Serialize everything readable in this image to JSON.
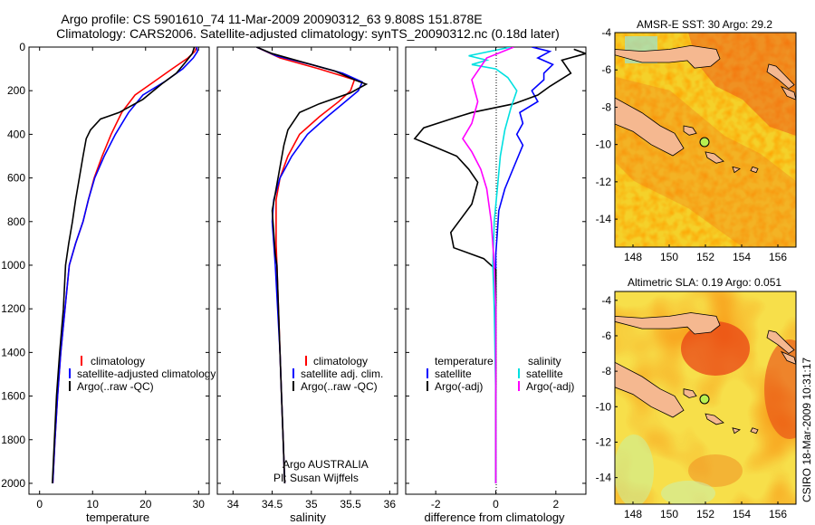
{
  "header": {
    "line1": "Argo profile: CS 5901610_74 11-Mar-2009 20090312_63 9.808S 151.878E",
    "line2": "Climatology: CARS2006. Satellite-adjusted climatology: synTS_20090312.nc (0.18d later)"
  },
  "side_label": "CSIRO 18-Mar-2009 10:31:17",
  "colors": {
    "climatology": "#ff0000",
    "satellite": "#0000ff",
    "argo": "#000000",
    "sat_salinity": "#00e0e0",
    "argo_salinity": "#ff00ff",
    "land": "#f5b890",
    "float_marker": "#b8f050"
  },
  "chart_data": [
    {
      "type": "line",
      "name": "temperature-profile",
      "xlabel": "temperature",
      "ylabel": "",
      "xlim": [
        -2,
        32
      ],
      "ylim": [
        2050,
        0
      ],
      "xticks": [
        0,
        10,
        20,
        30
      ],
      "yticks": [
        0,
        200,
        400,
        600,
        800,
        1000,
        1200,
        1400,
        1600,
        1800,
        2000
      ],
      "legend": {
        "placement": "lower-right",
        "entries": [
          "climatology",
          "satellite-adjusted climatology",
          "Argo(..raw -QC)"
        ]
      },
      "series": [
        {
          "name": "climatology",
          "color": "#ff0000",
          "points": [
            [
              29.6,
              0
            ],
            [
              29.3,
              20
            ],
            [
              28,
              50
            ],
            [
              25,
              100
            ],
            [
              21.5,
              160
            ],
            [
              18,
              220
            ],
            [
              15.5,
              300
            ],
            [
              13.5,
              400
            ],
            [
              11.8,
              500
            ],
            [
              10.3,
              600
            ],
            [
              9.2,
              700
            ],
            [
              8.2,
              800
            ],
            [
              6.8,
              900
            ],
            [
              5.6,
              1000
            ],
            [
              4.8,
              1200
            ],
            [
              4,
              1400
            ],
            [
              3.4,
              1600
            ],
            [
              2.9,
              1800
            ],
            [
              2.5,
              2000
            ]
          ]
        },
        {
          "name": "satellite-adjusted climatology",
          "color": "#0000ff",
          "points": [
            [
              29.6,
              0
            ],
            [
              29.8,
              20
            ],
            [
              29,
              50
            ],
            [
              27,
              100
            ],
            [
              23.5,
              160
            ],
            [
              19.5,
              220
            ],
            [
              16.8,
              300
            ],
            [
              14.3,
              400
            ],
            [
              12.2,
              500
            ],
            [
              10.4,
              600
            ],
            [
              9.2,
              700
            ],
            [
              8.2,
              800
            ],
            [
              6.8,
              900
            ],
            [
              5.6,
              1000
            ],
            [
              4.8,
              1200
            ],
            [
              4,
              1400
            ],
            [
              3.4,
              1600
            ],
            [
              2.9,
              1800
            ],
            [
              2.5,
              2000
            ]
          ]
        },
        {
          "name": "Argo(..raw -QC)",
          "color": "#000000",
          "points": [
            [
              29.2,
              0
            ],
            [
              28.8,
              30
            ],
            [
              27.5,
              70
            ],
            [
              25.8,
              120
            ],
            [
              23,
              170
            ],
            [
              19.5,
              240
            ],
            [
              15,
              300
            ],
            [
              11.5,
              330
            ],
            [
              9.6,
              380
            ],
            [
              8.8,
              420
            ],
            [
              8.2,
              500
            ],
            [
              7.5,
              600
            ],
            [
              6.8,
              700
            ],
            [
              6.2,
              800
            ],
            [
              5.5,
              900
            ],
            [
              4.9,
              1000
            ],
            [
              4.5,
              1200
            ],
            [
              3.8,
              1400
            ],
            [
              3.2,
              1600
            ],
            [
              2.8,
              1800
            ],
            [
              2.4,
              2000
            ]
          ]
        }
      ]
    },
    {
      "type": "line",
      "name": "salinity-profile",
      "xlabel": "salinity",
      "ylabel": "",
      "xlim": [
        33.8,
        36.1
      ],
      "ylim": [
        2050,
        0
      ],
      "xticks": [
        34,
        34.5,
        35,
        35.5,
        36
      ],
      "legend": {
        "placement": "lower-right",
        "entries": [
          "climatology",
          "satellite adj. clim.",
          "Argo(..raw -QC)"
        ]
      },
      "annotations": [
        "Argo AUSTRALIA",
        "PI: Susan Wijffels"
      ],
      "series": [
        {
          "name": "climatology",
          "color": "#ff0000",
          "points": [
            [
              34.3,
              0
            ],
            [
              34.6,
              50
            ],
            [
              35.1,
              100
            ],
            [
              35.55,
              150
            ],
            [
              35.5,
              200
            ],
            [
              35.35,
              250
            ],
            [
              35.1,
              320
            ],
            [
              34.85,
              400
            ],
            [
              34.7,
              500
            ],
            [
              34.6,
              600
            ],
            [
              34.55,
              700
            ],
            [
              34.55,
              800
            ],
            [
              34.55,
              900
            ],
            [
              34.56,
              1000
            ],
            [
              34.58,
              1200
            ],
            [
              34.6,
              1400
            ],
            [
              34.62,
              1600
            ],
            [
              34.64,
              1800
            ],
            [
              34.66,
              2000
            ]
          ]
        },
        {
          "name": "satellite adj. clim.",
          "color": "#0000ff",
          "points": [
            [
              34.3,
              0
            ],
            [
              34.55,
              40
            ],
            [
              35,
              80
            ],
            [
              35.4,
              120
            ],
            [
              35.65,
              160
            ],
            [
              35.6,
              200
            ],
            [
              35.4,
              260
            ],
            [
              35.2,
              320
            ],
            [
              34.95,
              400
            ],
            [
              34.75,
              500
            ],
            [
              34.6,
              600
            ],
            [
              34.52,
              700
            ],
            [
              34.5,
              800
            ],
            [
              34.52,
              900
            ],
            [
              34.54,
              1000
            ],
            [
              34.57,
              1200
            ],
            [
              34.6,
              1400
            ],
            [
              34.62,
              1600
            ],
            [
              34.64,
              1800
            ],
            [
              34.66,
              2000
            ]
          ]
        },
        {
          "name": "Argo(..raw -QC)",
          "color": "#000000",
          "points": [
            [
              34.3,
              0
            ],
            [
              34.5,
              30
            ],
            [
              34.9,
              70
            ],
            [
              35.3,
              110
            ],
            [
              35.55,
              150
            ],
            [
              35.7,
              170
            ],
            [
              35.5,
              210
            ],
            [
              35.1,
              260
            ],
            [
              34.85,
              300
            ],
            [
              34.7,
              380
            ],
            [
              34.65,
              450
            ],
            [
              34.6,
              550
            ],
            [
              34.55,
              650
            ],
            [
              34.5,
              750
            ],
            [
              34.52,
              850
            ],
            [
              34.54,
              950
            ],
            [
              34.56,
              1000
            ],
            [
              34.58,
              1200
            ],
            [
              34.6,
              1400
            ],
            [
              34.62,
              1600
            ],
            [
              34.64,
              1800
            ],
            [
              34.66,
              2000
            ]
          ]
        }
      ]
    },
    {
      "type": "line",
      "name": "difference-profile",
      "xlabel": "difference from climatology",
      "ylabel": "",
      "xlim": [
        -3,
        3
      ],
      "ylim": [
        2050,
        0
      ],
      "xticks": [
        -2,
        0,
        2
      ],
      "zero_line": "dotted",
      "legend": {
        "placement": "lower-center",
        "entries": [
          "temperature",
          "satellite",
          "Argo(-adj)",
          "salinity",
          "satellite",
          "Argo(-adj)"
        ]
      },
      "series": [
        {
          "name": "temperature satellite",
          "color": "#0000ff",
          "points": [
            [
              1.2,
              0
            ],
            [
              1.8,
              20
            ],
            [
              1.4,
              50
            ],
            [
              1.9,
              80
            ],
            [
              1.6,
              120
            ],
            [
              1.6,
              150
            ],
            [
              1.2,
              200
            ],
            [
              1.4,
              250
            ],
            [
              0.8,
              300
            ],
            [
              0.9,
              350
            ],
            [
              0.7,
              400
            ],
            [
              0.9,
              450
            ],
            [
              0.6,
              550
            ],
            [
              0.3,
              650
            ],
            [
              0.1,
              750
            ],
            [
              0.05,
              850
            ],
            [
              0,
              950
            ],
            [
              0,
              1200
            ],
            [
              0,
              1600
            ],
            [
              0,
              2000
            ]
          ]
        },
        {
          "name": "temperature Argo(-adj)",
          "color": "#000000",
          "points": [
            [
              2.6,
              10
            ],
            [
              3,
              30
            ],
            [
              2.2,
              60
            ],
            [
              2.5,
              120
            ],
            [
              1.8,
              180
            ],
            [
              1.4,
              220
            ],
            [
              0.6,
              260
            ],
            [
              -0.8,
              300
            ],
            [
              -1.5,
              330
            ],
            [
              -2.4,
              370
            ],
            [
              -2.7,
              420
            ],
            [
              -2,
              460
            ],
            [
              -1.3,
              500
            ],
            [
              -0.9,
              560
            ],
            [
              -0.6,
              620
            ],
            [
              -0.8,
              720
            ],
            [
              -1.5,
              850
            ],
            [
              -1.4,
              920
            ],
            [
              -0.4,
              970
            ],
            [
              0,
              1020
            ],
            [
              0,
              1200
            ],
            [
              0,
              1600
            ],
            [
              0,
              2000
            ]
          ]
        },
        {
          "name": "salinity satellite",
          "color": "#00e0e0",
          "points": [
            [
              0.5,
              0
            ],
            [
              -0.9,
              40
            ],
            [
              -0.3,
              60
            ],
            [
              -0.8,
              80
            ],
            [
              0,
              100
            ],
            [
              0.4,
              140
            ],
            [
              0.7,
              200
            ],
            [
              0.5,
              280
            ],
            [
              0.3,
              380
            ],
            [
              0.15,
              500
            ],
            [
              0.05,
              650
            ],
            [
              -0.05,
              800
            ],
            [
              -0.1,
              1000
            ],
            [
              -0.05,
              1200
            ],
            [
              0,
              1600
            ],
            [
              0,
              2000
            ]
          ]
        },
        {
          "name": "salinity Argo(-adj)",
          "color": "#ff00ff",
          "points": [
            [
              0.6,
              0
            ],
            [
              -0.3,
              50
            ],
            [
              -0.8,
              150
            ],
            [
              -0.6,
              250
            ],
            [
              -0.8,
              350
            ],
            [
              -1.1,
              420
            ],
            [
              -0.8,
              480
            ],
            [
              -0.5,
              560
            ],
            [
              -0.3,
              650
            ],
            [
              -0.15,
              800
            ],
            [
              -0.05,
              1000
            ],
            [
              0,
              1200
            ],
            [
              0,
              1600
            ],
            [
              0,
              2000
            ]
          ]
        }
      ]
    },
    {
      "type": "heatmap",
      "name": "sst-map",
      "title": "AMSR-E SST: 30 Argo: 29.2",
      "xlim": [
        147,
        157
      ],
      "ylim": [
        -15.5,
        -4
      ],
      "xticks": [
        148,
        150,
        152,
        154,
        156
      ],
      "yticks": [
        -4,
        -6,
        -8,
        -10,
        -12,
        -14
      ],
      "float_position": [
        151.88,
        -9.81
      ]
    },
    {
      "type": "heatmap",
      "name": "sla-map",
      "title": "Altimetric SLA: 0.19 Argo: 0.051",
      "xlim": [
        147,
        157
      ],
      "ylim": [
        -15.5,
        -3.5
      ],
      "xticks": [
        148,
        150,
        152,
        154,
        156
      ],
      "yticks": [
        -4,
        -6,
        -8,
        -10,
        -12,
        -14
      ],
      "float_position": [
        151.88,
        -9.81
      ]
    }
  ]
}
